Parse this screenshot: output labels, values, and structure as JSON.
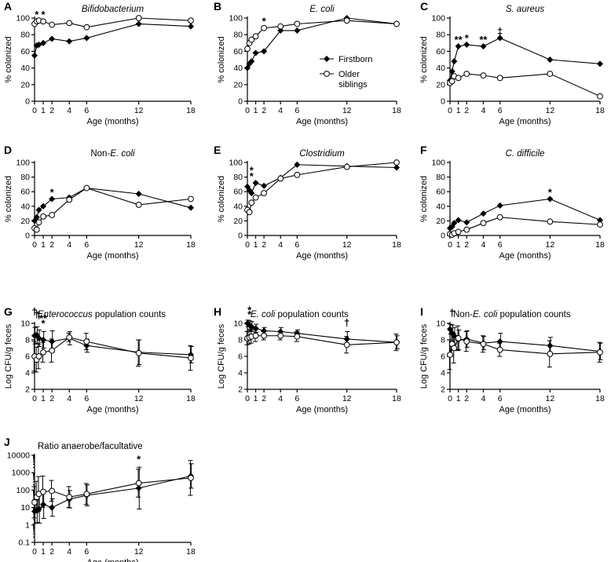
{
  "chart_data": [
    {
      "id": "A",
      "type": "line",
      "title": "Bifidobacterium",
      "italic": true,
      "xlabel": "Age (months)",
      "ylabel": "% colonized",
      "x": [
        0,
        0.25,
        0.5,
        1,
        2,
        4,
        6,
        12,
        18
      ],
      "ylim": [
        0,
        100
      ],
      "yticks": [
        0,
        20,
        40,
        60,
        80,
        100
      ],
      "xticks": [
        0,
        1,
        2,
        4,
        6,
        12,
        18
      ],
      "series": [
        {
          "name": "Firstborn",
          "marker": "diamond",
          "values": [
            55,
            67,
            68,
            70,
            75,
            72,
            76,
            93,
            90
          ]
        },
        {
          "name": "Older siblings",
          "marker": "circle",
          "values": [
            93,
            96,
            97,
            96,
            92,
            94,
            89,
            100,
            97
          ]
        }
      ],
      "annotations": [
        {
          "x": 0.25,
          "y": 96,
          "text": "*"
        },
        {
          "x": 1,
          "y": 96,
          "text": "*"
        }
      ],
      "legend": null
    },
    {
      "id": "B",
      "type": "line",
      "title": "E. coli",
      "italic": true,
      "xlabel": "Age (months)",
      "ylabel": "% colonized",
      "x": [
        0,
        0.25,
        0.5,
        1,
        2,
        4,
        6,
        12,
        18
      ],
      "ylim": [
        0,
        100
      ],
      "yticks": [
        0,
        20,
        40,
        60,
        80,
        100
      ],
      "xticks": [
        0,
        1,
        2,
        4,
        6,
        12,
        18
      ],
      "series": [
        {
          "name": "Firstborn",
          "marker": "diamond",
          "values": [
            40,
            45,
            48,
            58,
            60,
            85,
            85,
            100,
            93
          ]
        },
        {
          "name": "Older siblings",
          "marker": "circle",
          "values": [
            63,
            70,
            74,
            78,
            88,
            90,
            93,
            97,
            93
          ]
        }
      ],
      "annotations": [
        {
          "x": 2,
          "y": 88,
          "text": "*"
        }
      ],
      "legend": {
        "position": "middle-right",
        "entries": [
          "Firstborn",
          "Older siblings"
        ]
      }
    },
    {
      "id": "C",
      "type": "line",
      "title": "S. aureus",
      "italic": true,
      "xlabel": "Age (months)",
      "ylabel": "% colonized",
      "x": [
        0,
        0.25,
        0.5,
        1,
        2,
        4,
        6,
        12,
        18
      ],
      "ylim": [
        0,
        100
      ],
      "yticks": [
        0,
        20,
        40,
        60,
        80,
        100
      ],
      "xticks": [
        0,
        1,
        2,
        4,
        6,
        12,
        18
      ],
      "series": [
        {
          "name": "Firstborn",
          "marker": "diamond",
          "values": [
            25,
            36,
            48,
            66,
            68,
            66,
            76,
            50,
            45
          ]
        },
        {
          "name": "Older siblings",
          "marker": "circle",
          "values": [
            22,
            24,
            30,
            28,
            33,
            31,
            28,
            33,
            6
          ]
        }
      ],
      "annotations": [
        {
          "x": 1,
          "y": 66,
          "text": "**"
        },
        {
          "x": 2,
          "y": 68,
          "text": "*"
        },
        {
          "x": 4,
          "y": 66,
          "text": "**"
        },
        {
          "x": 6,
          "y": 76,
          "text": "‡"
        }
      ],
      "legend": null
    },
    {
      "id": "D",
      "type": "line",
      "title": "Non-E. coli",
      "titleParts": [
        "Non-",
        "E. coli"
      ],
      "xlabel": "Age (months)",
      "ylabel": "% colonized",
      "x": [
        0,
        0.25,
        0.5,
        1,
        2,
        4,
        6,
        12,
        18
      ],
      "ylim": [
        0,
        100
      ],
      "yticks": [
        0,
        20,
        40,
        60,
        80,
        100
      ],
      "xticks": [
        0,
        1,
        2,
        4,
        6,
        12,
        18
      ],
      "series": [
        {
          "name": "Firstborn",
          "marker": "diamond",
          "values": [
            20,
            25,
            35,
            40,
            50,
            52,
            65,
            57,
            38
          ]
        },
        {
          "name": "Older siblings",
          "marker": "circle",
          "values": [
            10,
            8,
            18,
            26,
            28,
            49,
            65,
            42,
            50
          ]
        }
      ],
      "annotations": [
        {
          "x": 2,
          "y": 50,
          "text": "*"
        }
      ],
      "legend": null
    },
    {
      "id": "E",
      "type": "line",
      "title": "Clostridium",
      "italic": true,
      "xlabel": "Age (months)",
      "ylabel": "% colonized",
      "x": [
        0,
        0.25,
        0.5,
        1,
        2,
        4,
        6,
        12,
        18
      ],
      "ylim": [
        0,
        100
      ],
      "yticks": [
        0,
        20,
        40,
        60,
        80,
        100
      ],
      "xticks": [
        0,
        1,
        2,
        4,
        6,
        12,
        18
      ],
      "series": [
        {
          "name": "Firstborn",
          "marker": "diamond",
          "values": [
            67,
            62,
            58,
            72,
            68,
            79,
            97,
            95,
            93
          ]
        },
        {
          "name": "Older siblings",
          "marker": "circle",
          "values": [
            35,
            32,
            45,
            52,
            58,
            78,
            83,
            94,
            100
          ]
        }
      ],
      "annotations": [
        {
          "x": 0.5,
          "y": 72,
          "text": "*"
        },
        {
          "x": 0.5,
          "y": 80,
          "text": "*"
        }
      ],
      "legend": null
    },
    {
      "id": "F",
      "type": "line",
      "title": "C. difficile",
      "italic": true,
      "xlabel": "Age (months)",
      "ylabel": "% colonized",
      "x": [
        0,
        0.25,
        0.5,
        1,
        2,
        4,
        6,
        12,
        18
      ],
      "ylim": [
        0,
        100
      ],
      "yticks": [
        0,
        20,
        40,
        60,
        80,
        100
      ],
      "xticks": [
        0,
        1,
        2,
        4,
        6,
        12,
        18
      ],
      "series": [
        {
          "name": "Firstborn",
          "marker": "diamond",
          "values": [
            10,
            12,
            17,
            21,
            18,
            30,
            41,
            50,
            21
          ]
        },
        {
          "name": "Older siblings",
          "marker": "circle",
          "values": [
            2,
            1,
            3,
            5,
            8,
            17,
            25,
            19,
            15
          ]
        }
      ],
      "annotations": [
        {
          "x": 12,
          "y": 50,
          "text": "*"
        }
      ],
      "legend": null
    },
    {
      "id": "G",
      "type": "line",
      "title": "Enterococcus population counts",
      "titleParts": [
        "Enterococcus",
        " population counts"
      ],
      "xlabel": "Age (months)",
      "ylabel": "Log CFU/g feces",
      "x": [
        0,
        0.25,
        0.5,
        1,
        2,
        4,
        6,
        12,
        18
      ],
      "ylim": [
        2,
        10
      ],
      "yticks": [
        2,
        4,
        6,
        8,
        10
      ],
      "xticks": [
        0,
        1,
        2,
        4,
        6,
        12,
        18
      ],
      "series": [
        {
          "name": "Firstborn",
          "marker": "diamond",
          "values": [
            8.5,
            8.6,
            8.2,
            8.0,
            7.8,
            8.2,
            7.3,
            6.5,
            6.2
          ],
          "err": [
            1.0,
            1.0,
            1.0,
            1.0,
            1.3,
            0.8,
            0.8,
            1.5,
            1.0
          ]
        },
        {
          "name": "Older siblings",
          "marker": "circle",
          "values": [
            6.0,
            5.6,
            6.0,
            6.5,
            6.7,
            8.3,
            7.8,
            6.4,
            5.8
          ],
          "err": [
            1.8,
            1.5,
            1.5,
            1.2,
            1.4,
            0.5,
            1.0,
            1.6,
            1.5
          ]
        }
      ],
      "annotations": [
        {
          "x": 0,
          "y": 10.6,
          "text": "†"
        },
        {
          "x": 0.25,
          "y": 10.3,
          "text": "†"
        },
        {
          "x": 0.5,
          "y": 10.2,
          "text": "†"
        },
        {
          "x": 1,
          "y": 9.8,
          "text": "**"
        },
        {
          "x": 1,
          "y": 9.2,
          "text": "*"
        }
      ],
      "legend": null
    },
    {
      "id": "H",
      "type": "line",
      "title": "E. coli population counts",
      "titleParts": [
        "E. coli",
        " population counts"
      ],
      "xlabel": "Age (months)",
      "ylabel": "Log CFU/g feces",
      "x": [
        0,
        0.25,
        0.5,
        1,
        2,
        4,
        6,
        12,
        18
      ],
      "ylim": [
        2,
        10
      ],
      "yticks": [
        2,
        4,
        6,
        8,
        10
      ],
      "xticks": [
        0,
        1,
        2,
        4,
        6,
        12,
        18
      ],
      "series": [
        {
          "name": "Firstborn",
          "marker": "diamond",
          "values": [
            10.0,
            9.8,
            9.6,
            9.4,
            9.1,
            9.0,
            8.8,
            8.1,
            7.7
          ],
          "err": [
            0.4,
            0.5,
            0.6,
            0.5,
            0.4,
            0.5,
            0.4,
            0.9,
            0.8
          ]
        },
        {
          "name": "Older siblings",
          "marker": "circle",
          "values": [
            8.2,
            8.3,
            8.4,
            8.5,
            8.5,
            8.5,
            8.4,
            7.4,
            7.7
          ],
          "err": [
            0.8,
            0.8,
            0.8,
            0.7,
            0.5,
            0.5,
            0.6,
            1.0,
            1.0
          ]
        }
      ],
      "annotations": [
        {
          "x": 0.25,
          "y": 10.3,
          "text": "*"
        },
        {
          "x": 0.25,
          "y": 11.0,
          "text": "*"
        },
        {
          "x": 12,
          "y": 9.3,
          "text": "†"
        }
      ],
      "legend": null
    },
    {
      "id": "I",
      "type": "line",
      "title": "Non-E. coli population counts",
      "titleParts": [
        "Non-",
        "E. coli",
        " population counts"
      ],
      "xlabel": "Age (months)",
      "ylabel": "Log CFU/g feces",
      "x": [
        0,
        0.25,
        0.5,
        1,
        2,
        4,
        6,
        12,
        18
      ],
      "ylim": [
        2,
        10
      ],
      "yticks": [
        2,
        4,
        6,
        8,
        10
      ],
      "xticks": [
        0,
        1,
        2,
        4,
        6,
        12,
        18
      ],
      "series": [
        {
          "name": "Firstborn",
          "marker": "diamond",
          "values": [
            9.3,
            8.8,
            8.5,
            8.0,
            8.1,
            7.6,
            7.8,
            7.3,
            6.6
          ],
          "err": [
            0.6,
            1.0,
            1.0,
            1.2,
            1.0,
            0.8,
            1.0,
            1.0,
            1.0
          ]
        },
        {
          "name": "Older siblings",
          "marker": "circle",
          "values": [
            6.2,
            7.5,
            7.0,
            8.2,
            7.8,
            7.5,
            6.8,
            6.3,
            6.5
          ],
          "err": [
            1.8,
            1.5,
            1.8,
            1.5,
            1.2,
            1.0,
            0.8,
            1.6,
            1.2
          ]
        }
      ],
      "annotations": [
        {
          "x": 0.25,
          "y": 10.5,
          "text": "†"
        }
      ],
      "legend": null
    },
    {
      "id": "J",
      "type": "line",
      "scale": "log",
      "title": "Ratio anaerobe/facultative",
      "xlabel": "Age (months)",
      "ylabel": "",
      "x": [
        0,
        0.25,
        0.5,
        1,
        2,
        4,
        6,
        12,
        18
      ],
      "ylim": [
        0.1,
        10000
      ],
      "yticks": [
        0.1,
        1,
        10,
        100,
        1000,
        10000
      ],
      "ytickLabels": [
        "0.1",
        "1",
        "10",
        "100",
        "1000",
        "10000"
      ],
      "xticks": [
        0,
        1,
        2,
        4,
        6,
        12,
        18
      ],
      "series": [
        {
          "name": "Firstborn",
          "marker": "diamond",
          "values": [
            6,
            7,
            8,
            15,
            10,
            30,
            50,
            130,
            650
          ],
          "errLog": [
            0.7,
            0.7,
            0.8,
            0.8,
            0.5,
            0.5,
            0.6,
            1.2,
            0.7
          ]
        },
        {
          "name": "Older siblings",
          "marker": "circle",
          "values": [
            20,
            40,
            60,
            80,
            90,
            40,
            60,
            250,
            500
          ],
          "errLog": [
            0.9,
            0.9,
            1.0,
            0.9,
            0.6,
            0.6,
            0.6,
            0.8,
            1.0
          ]
        }
      ],
      "annotations": [
        {
          "x": 12,
          "y": 2500,
          "text": "*"
        }
      ],
      "legend": null
    }
  ],
  "panel_letters": [
    "A",
    "B",
    "C",
    "D",
    "E",
    "F",
    "G",
    "H",
    "I",
    "J"
  ],
  "legend_labels": {
    "firstborn": "Firstborn",
    "older_line1": "Older",
    "older_line2": "siblings"
  }
}
